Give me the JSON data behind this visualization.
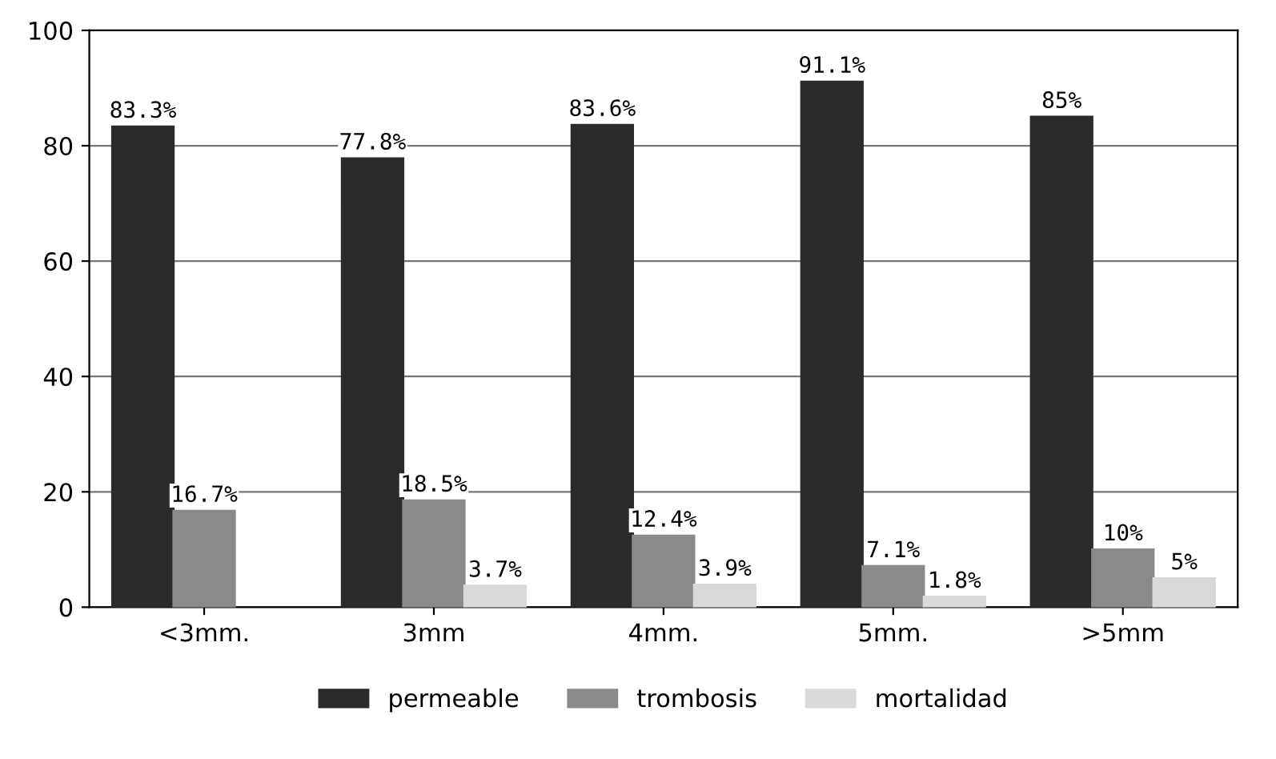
{
  "chart_data": {
    "type": "bar",
    "categories": [
      "<3mm.",
      "3mm",
      "4mm.",
      "5mm.",
      ">5mm"
    ],
    "series": [
      {
        "name": "permeable",
        "color": "#2b2b2b",
        "values": [
          83.3,
          77.8,
          83.6,
          91.1,
          85
        ],
        "value_labels": [
          "83.3%",
          "77.8%",
          "83.6%",
          "91.1%",
          "85%"
        ]
      },
      {
        "name": "trombosis",
        "color": "#8a8a8a",
        "values": [
          16.7,
          18.5,
          12.4,
          7.1,
          10
        ],
        "value_labels": [
          "16.7%",
          "18.5%",
          "12.4%",
          "7.1%",
          "10%"
        ]
      },
      {
        "name": "mortalidad",
        "color": "#d9d9d9",
        "values": [
          null,
          3.7,
          3.9,
          1.8,
          5
        ],
        "value_labels": [
          null,
          "3.7%",
          "3.9%",
          "1.8%",
          "5%"
        ]
      }
    ],
    "ylim": [
      0,
      100
    ],
    "yticks": [
      0,
      20,
      40,
      60,
      80,
      100
    ],
    "grid": "y",
    "legend": "bottom"
  }
}
